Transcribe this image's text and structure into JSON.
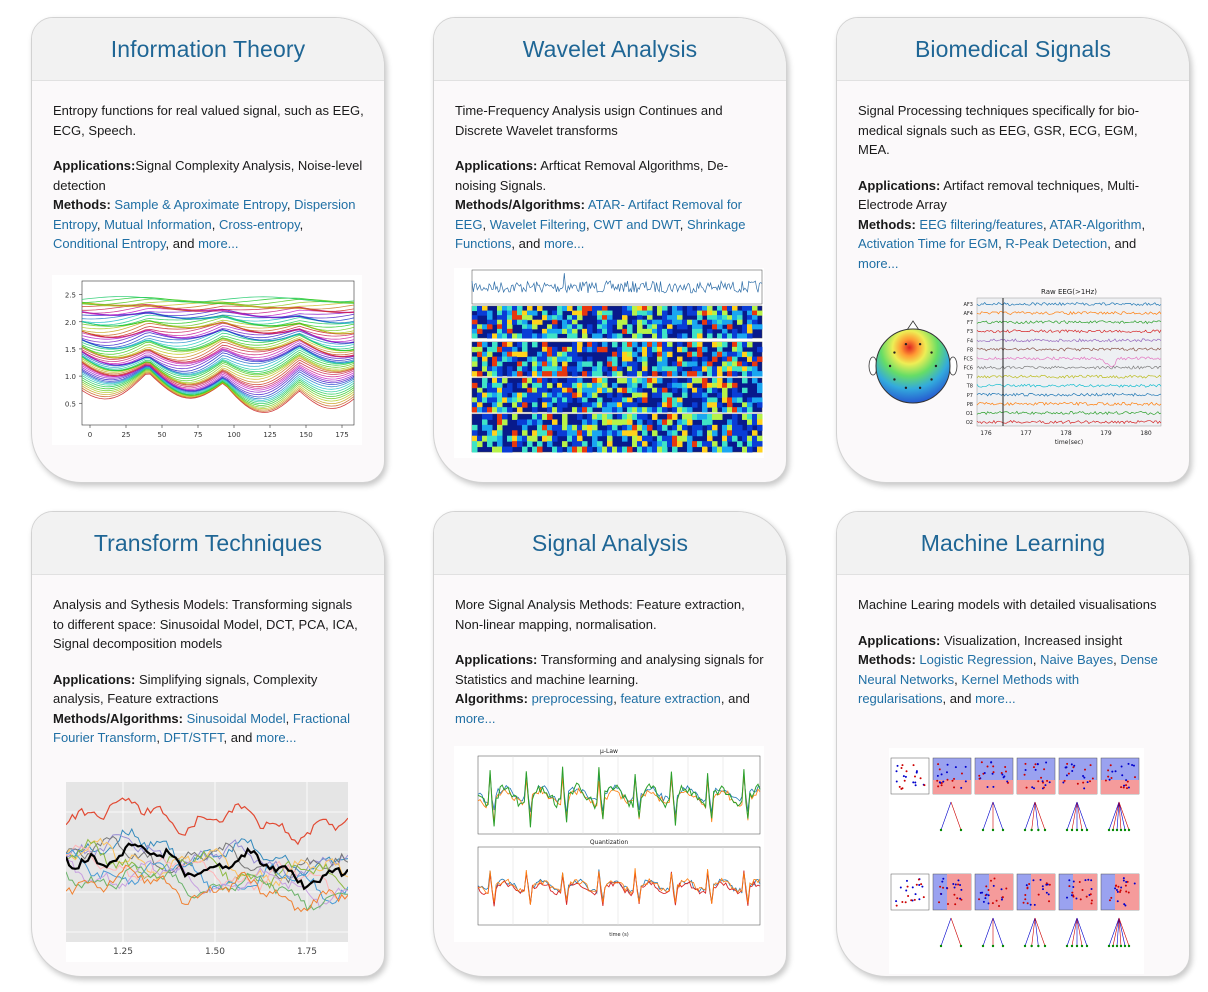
{
  "cards": [
    {
      "title": "Information Theory",
      "desc": "Entropy functions for real valued signal, such as EEG, ECG, Speech.",
      "apps_label": "Applications:",
      "apps": "Signal Complexity Analysis, Noise-level detection",
      "methods_label": "Methods:",
      "links": [
        "Sample & Aproximate Entropy",
        "Dispersion Entropy",
        "Mutual Information",
        "Cross-entropy",
        "Conditional Entropy"
      ],
      "and": "and",
      "more": "more...",
      "figure": {
        "kind": "line-stack",
        "yticks": [
          "2.5",
          "2.0",
          "1.5",
          "1.0",
          "0.5"
        ],
        "xticks": [
          "0",
          "25",
          "50",
          "75",
          "100",
          "125",
          "150",
          "175"
        ]
      }
    },
    {
      "title": "Wavelet Analysis",
      "desc": "Time-Frequency Analysis usign Continues and Discrete Wavelet transforms",
      "apps_label": "Applications:",
      "apps": "Arfticat Removal Algorithms, De-noising Signals.",
      "methods_label": "Methods/Algorithms:",
      "links": [
        "ATAR- Artifact Removal for EEG",
        "Wavelet Filtering",
        "CWT and DWT",
        "Shrinkage Functions"
      ],
      "and": "and",
      "more": "more...",
      "figure": {
        "kind": "scalogram"
      }
    },
    {
      "title": "Biomedical Signals",
      "desc": "Signal Processing techniques specifically for bio-medical signals such as EEG, GSR, ECG, EGM, MEA.",
      "apps_label": "Applications:",
      "apps": "Artifact removal techniques, Multi-Electrode Array",
      "methods_label": "Methods:",
      "links": [
        "EEG filtering/features",
        "ATAR-Algorithm",
        "Activation Time for EGM",
        "R-Peak Detection"
      ],
      "and": "and",
      "more": "more...",
      "figure": {
        "kind": "eeg",
        "title": "Raw EEG(>1Hz)",
        "channels": [
          "AF3",
          "AF4",
          "F7",
          "F3",
          "F4",
          "F8",
          "FC5",
          "FC6",
          "T7",
          "T8",
          "P7",
          "P8",
          "O1",
          "O2"
        ],
        "xticks": [
          "176",
          "177",
          "178",
          "179",
          "180"
        ],
        "xlabel": "time(sec)"
      }
    },
    {
      "title": "Transform Techniques",
      "desc": "Analysis and Sythesis Models: Transforming signals to different space: Sinusoidal Model, DCT, PCA, ICA, Signal decomposition models",
      "apps_label": "Applications:",
      "apps": "Simplifying signals, Complexity analysis, Feature extractions",
      "methods_label": "Methods/Algorithms:",
      "links": [
        "Sinusoidal Model",
        "Fractional Fourier Transform",
        "DFT/STFT"
      ],
      "and": "and",
      "more": "more...",
      "figure": {
        "kind": "multi-line",
        "xticks": [
          "1.25",
          "1.50",
          "1.75"
        ]
      }
    },
    {
      "title": "Signal Analysis",
      "desc": "More Signal Analysis Methods: Feature extraction, Non-linear mapping, normalisation.",
      "apps_label": "Applications:",
      "apps": "Transforming and analysing signals for Statistics and machine learning.",
      "methods_label": "Algorithms:",
      "links": [
        "preprocessing",
        "feature extraction"
      ],
      "and": "and",
      "more": "more...",
      "figure": {
        "kind": "quantization",
        "title1": "μ-Law",
        "title2": "Quantization",
        "xlabel": "time (s)"
      }
    },
    {
      "title": "Machine Learning",
      "desc": "Machine Learing models with detailed visualisations",
      "apps_label": "Applications:",
      "apps": "Visualization, Increased insight",
      "methods_label": "Methods:",
      "links": [
        "Logistic Regression",
        "Naive Bayes",
        "Dense Neural Networks",
        "Kernel Methods with regularisations"
      ],
      "and": "and",
      "more": "more...",
      "figure": {
        "kind": "ml-grid"
      }
    }
  ],
  "colors": {
    "title": "#1f6695",
    "link": "#1f6fa4"
  }
}
